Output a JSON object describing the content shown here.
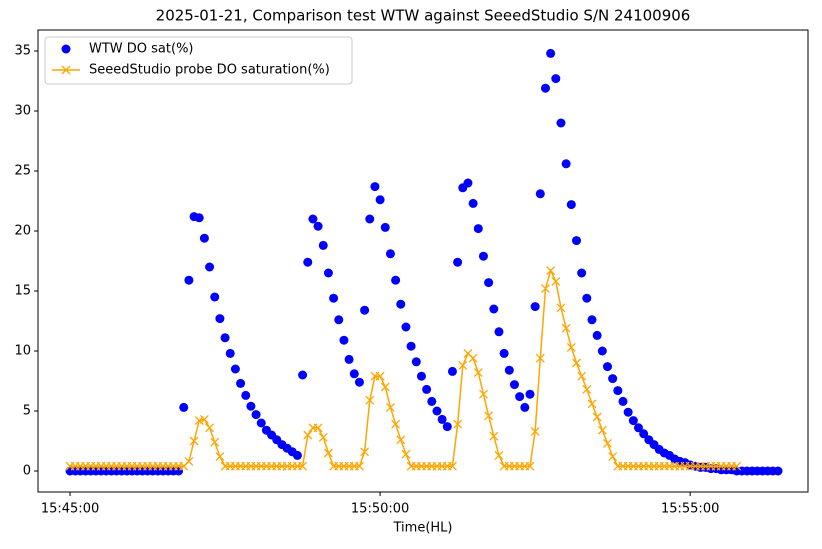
{
  "chart_data": {
    "type": "line",
    "title": "2025-01-21, Comparison test WTW against SeeedStudio S/N 24100906",
    "x_label": "Time(HL)",
    "x": [
      "15:45:00",
      "15:45:05",
      "15:45:10",
      "15:45:15",
      "15:45:20",
      "15:45:25",
      "15:45:30",
      "15:45:35",
      "15:45:40",
      "15:45:45",
      "15:45:50",
      "15:45:55",
      "15:46:00",
      "15:46:05",
      "15:46:10",
      "15:46:15",
      "15:46:20",
      "15:46:25",
      "15:46:30",
      "15:46:35",
      "15:46:40",
      "15:46:45",
      "15:46:50",
      "15:46:55",
      "15:47:00",
      "15:47:05",
      "15:47:10",
      "15:47:15",
      "15:47:20",
      "15:47:25",
      "15:47:30",
      "15:47:35",
      "15:47:40",
      "15:47:45",
      "15:47:50",
      "15:47:55",
      "15:48:00",
      "15:48:05",
      "15:48:10",
      "15:48:15",
      "15:48:20",
      "15:48:25",
      "15:48:30",
      "15:48:35",
      "15:48:40",
      "15:48:45",
      "15:48:50",
      "15:48:55",
      "15:49:00",
      "15:49:05",
      "15:49:10",
      "15:49:15",
      "15:49:20",
      "15:49:25",
      "15:49:30",
      "15:49:35",
      "15:49:40",
      "15:49:45",
      "15:49:50",
      "15:49:55",
      "15:50:00",
      "15:50:05",
      "15:50:10",
      "15:50:15",
      "15:50:20",
      "15:50:25",
      "15:50:30",
      "15:50:35",
      "15:50:40",
      "15:50:45",
      "15:50:50",
      "15:50:55",
      "15:51:00",
      "15:51:05",
      "15:51:10",
      "15:51:15",
      "15:51:20",
      "15:51:25",
      "15:51:30",
      "15:51:35",
      "15:51:40",
      "15:51:45",
      "15:51:50",
      "15:51:55",
      "15:52:00",
      "15:52:05",
      "15:52:10",
      "15:52:15",
      "15:52:20",
      "15:52:25",
      "15:52:30",
      "15:52:35",
      "15:52:40",
      "15:52:45",
      "15:52:50",
      "15:52:55",
      "15:53:00",
      "15:53:05",
      "15:53:10",
      "15:53:15",
      "15:53:20",
      "15:53:25",
      "15:53:30",
      "15:53:35",
      "15:53:40",
      "15:53:45",
      "15:53:50",
      "15:53:55",
      "15:54:00",
      "15:54:05",
      "15:54:10",
      "15:54:15",
      "15:54:20",
      "15:54:25",
      "15:54:30",
      "15:54:35",
      "15:54:40",
      "15:54:45",
      "15:54:50",
      "15:54:55",
      "15:55:00",
      "15:55:05",
      "15:55:10",
      "15:55:15",
      "15:55:20",
      "15:55:25",
      "15:55:30",
      "15:55:35",
      "15:55:40",
      "15:55:45",
      "15:55:50",
      "15:55:55",
      "15:56:00",
      "15:56:05",
      "15:56:10",
      "15:56:15",
      "15:56:20",
      "15:56:25"
    ],
    "series": [
      {
        "name": "WTW DO sat(%)",
        "type": "scatter",
        "color": "#0000ff",
        "values": [
          0,
          0,
          0,
          0,
          0,
          0,
          0,
          0,
          0,
          0,
          0,
          0,
          0,
          0,
          0,
          0,
          0,
          0,
          0,
          0,
          0,
          0,
          5.3,
          15.9,
          21.2,
          21.1,
          19.4,
          17.0,
          14.5,
          12.7,
          11.1,
          9.8,
          8.5,
          7.3,
          6.3,
          5.4,
          4.7,
          4.0,
          3.4,
          3.0,
          2.6,
          2.2,
          1.9,
          1.6,
          1.3,
          8.0,
          17.4,
          21.0,
          20.4,
          18.8,
          16.5,
          14.4,
          12.6,
          10.9,
          9.3,
          8.1,
          7.4,
          13.4,
          21.0,
          23.7,
          22.6,
          20.3,
          18.1,
          15.9,
          13.9,
          12.0,
          10.4,
          9.1,
          7.9,
          6.8,
          5.8,
          5.0,
          4.3,
          3.7,
          8.3,
          17.4,
          23.6,
          24.0,
          22.3,
          20.2,
          17.9,
          15.7,
          13.5,
          11.6,
          9.8,
          8.4,
          7.2,
          6.2,
          5.3,
          6.4,
          13.7,
          23.1,
          31.9,
          34.8,
          32.7,
          29.0,
          25.6,
          22.2,
          19.2,
          16.5,
          14.4,
          12.6,
          11.3,
          10.0,
          8.7,
          7.7,
          6.7,
          5.8,
          4.9,
          4.2,
          3.6,
          3.1,
          2.6,
          2.2,
          1.8,
          1.5,
          1.3,
          1.0,
          0.8,
          0.7,
          0.5,
          0.4,
          0.3,
          0.3,
          0.2,
          0.2,
          0.1,
          0.1,
          0.1,
          0,
          0,
          0,
          0,
          0,
          0,
          0,
          0,
          0
        ]
      },
      {
        "name": "SeeedStudio probe DO saturation(%)",
        "type": "line",
        "color": "#ffa500",
        "values": [
          0.4,
          0.4,
          0.4,
          0.4,
          0.4,
          0.4,
          0.4,
          0.4,
          0.4,
          0.4,
          0.4,
          0.4,
          0.4,
          0.4,
          0.4,
          0.4,
          0.4,
          0.4,
          0.4,
          0.4,
          0.4,
          0.4,
          0.4,
          0.8,
          2.5,
          4.2,
          4.3,
          3.6,
          2.4,
          1.2,
          0.4,
          0.4,
          0.4,
          0.4,
          0.4,
          0.4,
          0.4,
          0.4,
          0.4,
          0.4,
          0.4,
          0.4,
          0.4,
          0.4,
          0.4,
          0.4,
          3.0,
          3.6,
          3.6,
          2.8,
          1.5,
          0.4,
          0.4,
          0.4,
          0.4,
          0.4,
          0.4,
          1.6,
          5.9,
          7.9,
          7.9,
          7.0,
          5.3,
          3.9,
          2.6,
          1.4,
          0.4,
          0.4,
          0.4,
          0.4,
          0.4,
          0.4,
          0.4,
          0.4,
          0.4,
          3.9,
          8.8,
          9.8,
          9.4,
          8.2,
          6.4,
          4.6,
          2.9,
          1.3,
          0.4,
          0.4,
          0.4,
          0.4,
          0.4,
          0.4,
          3.3,
          9.4,
          15.2,
          16.7,
          15.8,
          13.6,
          11.9,
          10.3,
          9.0,
          7.9,
          6.8,
          5.6,
          4.5,
          3.4,
          2.3,
          1.2,
          0.4,
          0.4,
          0.4,
          0.4,
          0.4,
          0.4,
          0.4,
          0.4,
          0.4,
          0.4,
          0.4,
          0.4,
          0.4,
          0.4,
          0.4,
          0.4,
          0.4,
          0.4,
          0.4,
          0.4,
          0.4,
          0.4,
          0.4,
          0.4,
          null,
          null,
          null,
          null,
          null,
          null,
          null,
          null
        ]
      }
    ],
    "xlim": [
      "15:44:29",
      "15:56:54"
    ],
    "xticks": [
      "15:45:00",
      "15:50:00",
      "15:55:00"
    ],
    "ylim": [
      -1.75,
      36.75
    ],
    "yticks": [
      0,
      5,
      10,
      15,
      20,
      25,
      30,
      35
    ],
    "grid": false,
    "legend": "upper left"
  }
}
